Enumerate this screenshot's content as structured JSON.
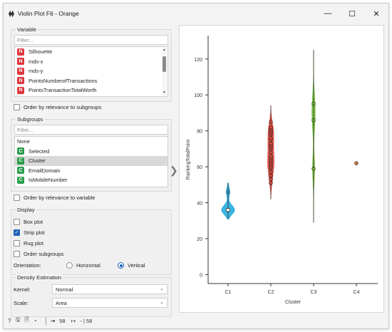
{
  "window": {
    "title": "Violin Plot F6 - Orange",
    "app_icon": "⧫⧫",
    "minimize": "—",
    "maximize": "☐",
    "close": "✕"
  },
  "variable": {
    "title": "Variable",
    "filter_placeholder": "Filter...",
    "items": [
      {
        "badge": "N",
        "label": "Silhouette"
      },
      {
        "badge": "N",
        "label": "mds-x"
      },
      {
        "badge": "N",
        "label": "mds-y"
      },
      {
        "badge": "N",
        "label": "PointsNumberofTransactions"
      },
      {
        "badge": "N",
        "label": "PointsTransactionTotalWorth"
      }
    ],
    "order_label": "Order by relevance to subgroups"
  },
  "subgroups": {
    "title": "Subgroups",
    "filter_placeholder": "Filter...",
    "items": [
      {
        "badge": "",
        "label": "None"
      },
      {
        "badge": "C",
        "label": "Selected"
      },
      {
        "badge": "C",
        "label": "Cluster",
        "selected": true
      },
      {
        "badge": "C",
        "label": "EmailDomain"
      },
      {
        "badge": "C",
        "label": "IsMobileNumber"
      }
    ],
    "order_label": "Order by relevance to variable"
  },
  "display": {
    "title": "Display",
    "box_plot": "Box plot",
    "strip_plot": "Strip plot",
    "rug_plot": "Rug plot",
    "order_subgroups": "Order subgroups",
    "orientation_label": "Orientation:",
    "horizontal": "Horizontal",
    "vertical": "Vertical"
  },
  "density": {
    "title": "Density Estimation",
    "kernel_label": "Kernel:",
    "kernel_value": "Normal",
    "scale_label": "Scale:",
    "scale_value": "Area"
  },
  "status": {
    "input_count": "58",
    "output_count": "- | 58"
  },
  "chart_data": {
    "type": "violin",
    "xlabel": "Cluster",
    "ylabel": "RankingTotalPoint",
    "categories": [
      "C1",
      "C2",
      "C3",
      "C4"
    ],
    "yticks": [
      0,
      20,
      40,
      60,
      80,
      100,
      120
    ],
    "ylim": [
      -5,
      133
    ],
    "colors": {
      "C1": "#1aa7dc",
      "C2": "#e8473c",
      "C3": "#6fbe2f",
      "C4": "#e07a3c"
    },
    "series": [
      {
        "category": "C1",
        "range": [
          31,
          51
        ],
        "points": [
          46,
          36,
          36,
          36,
          36
        ]
      },
      {
        "category": "C2",
        "range": [
          42,
          94
        ],
        "points": [
          51,
          53,
          55,
          57,
          59,
          60,
          61,
          62,
          63,
          64,
          65,
          66,
          68,
          70,
          71,
          72,
          73,
          75,
          76,
          78,
          79,
          80,
          81,
          82,
          85
        ]
      },
      {
        "category": "C3",
        "range": [
          29,
          125
        ],
        "points": [
          59,
          86,
          95
        ]
      },
      {
        "category": "C4",
        "range": [
          62,
          62
        ],
        "points": [
          62
        ]
      }
    ]
  }
}
